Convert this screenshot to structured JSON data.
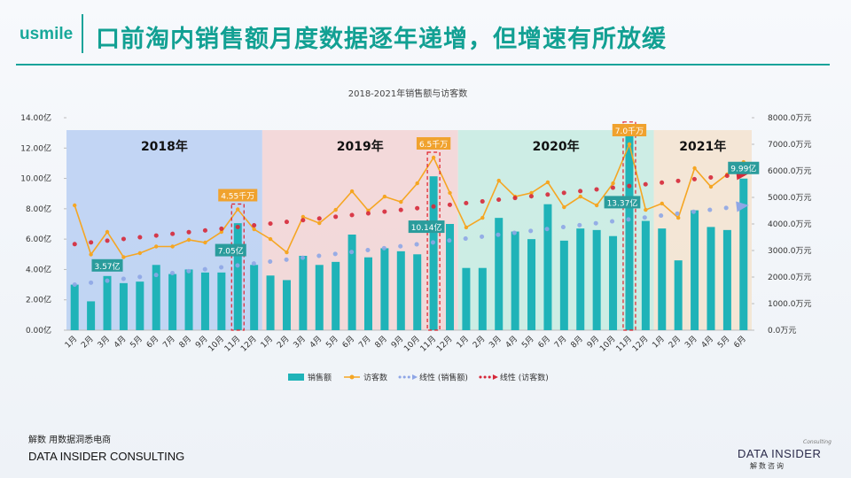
{
  "header": {
    "logo": "usmile",
    "title": "口前淘内销售额月度数据逐年递增，但增速有所放缓"
  },
  "footer": {
    "tagline": "解数 用数据洞悉电商",
    "company": "DATA INSIDER CONSULTING",
    "brand": "DATA INSIDER",
    "brand_cn": "解数咨询",
    "brand_sub": "Consulting"
  },
  "chart_data": {
    "type": "combo",
    "title": "2018-2021年销售额与访客数",
    "categories": [
      "1月",
      "2月",
      "3月",
      "4月",
      "5月",
      "6月",
      "7月",
      "8月",
      "9月",
      "10月",
      "11月",
      "12月",
      "1月",
      "2月",
      "3月",
      "4月",
      "5月",
      "6月",
      "7月",
      "8月",
      "9月",
      "10月",
      "11月",
      "12月",
      "1月",
      "2月",
      "3月",
      "4月",
      "5月",
      "6月",
      "7月",
      "8月",
      "9月",
      "10月",
      "11月",
      "12月",
      "1月",
      "2月",
      "3月",
      "4月",
      "5月",
      "6月"
    ],
    "periods": [
      {
        "label": "2018年",
        "color": "#b9cff2"
      },
      {
        "label": "2019年",
        "color": "#f2d3d3"
      },
      {
        "label": "2020年",
        "color": "#c6ebe1"
      },
      {
        "label": "2021年",
        "color": "#f3e3cf"
      }
    ],
    "series": [
      {
        "name": "销售额",
        "type": "bar",
        "color": "#1fb3b8",
        "values": [
          3.0,
          1.9,
          3.57,
          3.1,
          3.2,
          4.3,
          3.7,
          4.0,
          3.8,
          3.8,
          7.05,
          4.3,
          3.6,
          3.3,
          4.9,
          4.3,
          4.5,
          6.3,
          4.8,
          5.4,
          5.2,
          5.0,
          10.14,
          7.0,
          4.1,
          4.1,
          7.4,
          6.5,
          6.0,
          8.3,
          5.9,
          6.7,
          6.6,
          6.2,
          13.37,
          7.2,
          6.7,
          4.6,
          7.9,
          6.8,
          6.6,
          9.99
        ],
        "value_labels": [
          null,
          null,
          "3.57亿",
          null,
          null,
          null,
          null,
          null,
          null,
          null,
          "7.05亿",
          null,
          null,
          null,
          null,
          null,
          null,
          null,
          null,
          null,
          null,
          null,
          "10.14亿",
          null,
          null,
          null,
          null,
          null,
          null,
          null,
          null,
          null,
          null,
          null,
          "13.37亿",
          null,
          null,
          null,
          null,
          null,
          null,
          "9.99亿"
        ]
      },
      {
        "name": "访客数",
        "type": "line",
        "axis": "y2",
        "color": "#f5a623",
        "values": [
          4700,
          2850,
          3700,
          2750,
          2900,
          3150,
          3150,
          3400,
          3300,
          3700,
          4550,
          3800,
          3430,
          2930,
          4270,
          4030,
          4530,
          5230,
          4500,
          5030,
          4830,
          5530,
          6500,
          5170,
          3870,
          4230,
          5630,
          5030,
          5170,
          5570,
          4630,
          5030,
          4700,
          5530,
          7000,
          4530,
          4770,
          4230,
          6100,
          5400,
          5870,
          6330
        ],
        "value_labels": [
          null,
          null,
          null,
          null,
          null,
          null,
          null,
          null,
          null,
          null,
          "4.55千万",
          null,
          null,
          null,
          null,
          null,
          null,
          null,
          null,
          null,
          null,
          null,
          "6.5千万",
          null,
          null,
          null,
          null,
          null,
          null,
          null,
          null,
          null,
          null,
          null,
          "7.0千万",
          null,
          null,
          null,
          null,
          null,
          null,
          null
        ]
      },
      {
        "name": "线性 (销售额)",
        "type": "trend",
        "fit": "销售额",
        "color": "#8ea6e6"
      },
      {
        "name": "线性 (访客数)",
        "type": "trend",
        "fit": "访客数",
        "axis": "y2",
        "color": "#d62839"
      }
    ],
    "ylim": [
      0,
      14
    ],
    "yticks": [
      {
        "value": 0,
        "label": "0.00亿"
      },
      {
        "value": 2,
        "label": "2.00亿"
      },
      {
        "value": 4,
        "label": "4.00亿"
      },
      {
        "value": 6,
        "label": "6.00亿"
      },
      {
        "value": 8,
        "label": "8.00亿"
      },
      {
        "value": 10,
        "label": "10.00亿"
      },
      {
        "value": 12,
        "label": "12.00亿"
      },
      {
        "value": 14,
        "label": "14.00亿"
      }
    ],
    "y2lim": [
      0,
      8000
    ],
    "y2ticks": [
      {
        "value": 0,
        "label": "0.0万元"
      },
      {
        "value": 1000,
        "label": "1000.0万元"
      },
      {
        "value": 2000,
        "label": "2000.0万元"
      },
      {
        "value": 3000,
        "label": "3000.0万元"
      },
      {
        "value": 4000,
        "label": "4000.0万元"
      },
      {
        "value": 5000,
        "label": "5000.0万元"
      },
      {
        "value": 6000,
        "label": "6000.0万元"
      },
      {
        "value": 7000,
        "label": "7000.0万元"
      },
      {
        "value": 8000,
        "label": "8000.0万元"
      }
    ],
    "legend": "bottom"
  }
}
